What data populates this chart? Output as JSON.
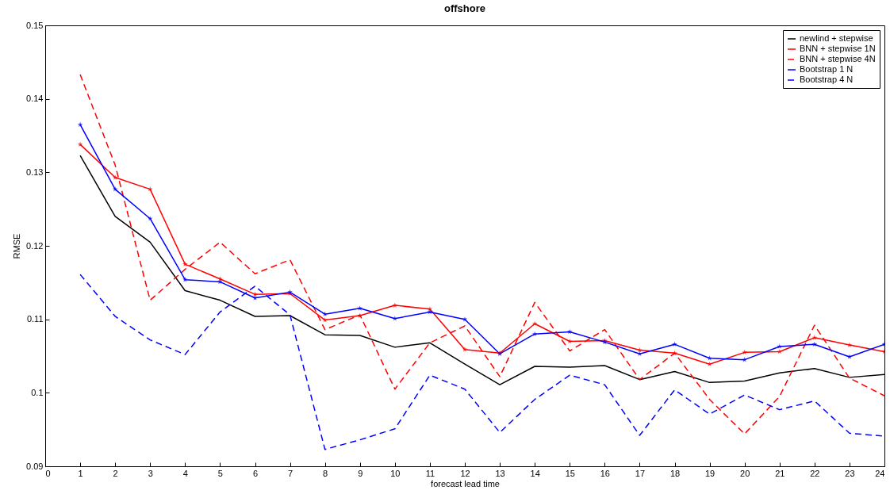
{
  "chart_data": {
    "type": "line",
    "title": "offshore",
    "xlabel": "forecast lead time",
    "ylabel": "RMSE",
    "x": [
      1,
      2,
      3,
      4,
      5,
      6,
      7,
      8,
      9,
      10,
      11,
      12,
      13,
      14,
      15,
      16,
      17,
      18,
      19,
      20,
      21,
      22,
      23,
      24
    ],
    "xlim": [
      0,
      24
    ],
    "xticks": [
      0,
      1,
      2,
      3,
      4,
      5,
      6,
      7,
      8,
      9,
      10,
      11,
      12,
      13,
      14,
      15,
      16,
      17,
      18,
      19,
      20,
      21,
      22,
      23,
      24
    ],
    "ylim": [
      0.09,
      0.15
    ],
    "yticks": [
      0.09,
      0.1,
      0.11,
      0.12,
      0.13,
      0.14,
      0.15
    ],
    "grid": false,
    "legend": "top right",
    "series": [
      {
        "name": "newlind + stepwise",
        "color": "#000000",
        "line_style": "solid",
        "marker": "none",
        "values": [
          0.1323,
          0.124,
          0.1205,
          0.1139,
          0.1126,
          0.1104,
          0.1105,
          0.1079,
          0.1078,
          0.1062,
          0.1068,
          0.1039,
          0.1011,
          0.1036,
          0.1035,
          0.1037,
          0.1018,
          0.1029,
          0.1014,
          0.1016,
          0.1027,
          0.1033,
          0.1021,
          0.1025
        ]
      },
      {
        "name": "BNN + stepwise 1N",
        "color": "#ff0000",
        "line_style": "solid",
        "marker": "star",
        "values": [
          0.1338,
          0.1293,
          0.1277,
          0.1175,
          0.1155,
          0.1134,
          0.1135,
          0.1099,
          0.1105,
          0.1119,
          0.1114,
          0.1059,
          0.1054,
          0.1094,
          0.107,
          0.1071,
          0.1058,
          0.1054,
          0.1039,
          0.1055,
          0.1056,
          0.1075,
          0.1065,
          0.1056
        ]
      },
      {
        "name": "BNN + stepwise 4N",
        "color": "#ff0000",
        "line_style": "dashed",
        "marker": "none",
        "values": [
          0.1433,
          0.131,
          0.1126,
          0.1168,
          0.1205,
          0.1162,
          0.1181,
          0.1086,
          0.1106,
          0.1005,
          0.1068,
          0.1091,
          0.1022,
          0.1123,
          0.1057,
          0.1086,
          0.1018,
          0.1054,
          0.0991,
          0.0944,
          0.0995,
          0.1092,
          0.102,
          0.0996
        ]
      },
      {
        "name": "Bootstrap 1 N",
        "color": "#0000ff",
        "line_style": "solid",
        "marker": "star",
        "values": [
          0.1365,
          0.1277,
          0.1237,
          0.1154,
          0.1151,
          0.1129,
          0.1137,
          0.1107,
          0.1115,
          0.1101,
          0.111,
          0.11,
          0.1053,
          0.108,
          0.1083,
          0.1069,
          0.1053,
          0.1066,
          0.1047,
          0.1045,
          0.1063,
          0.1066,
          0.1049,
          0.1066
        ]
      },
      {
        "name": "Bootstrap 4 N",
        "color": "#0000ff",
        "line_style": "dashed",
        "marker": "none",
        "values": [
          0.1161,
          0.1104,
          0.1072,
          0.1052,
          0.111,
          0.1145,
          0.1106,
          0.0923,
          0.0936,
          0.0951,
          0.1024,
          0.1005,
          0.0946,
          0.0991,
          0.1024,
          0.1011,
          0.0942,
          0.1004,
          0.0971,
          0.0997,
          0.0977,
          0.0989,
          0.0945,
          0.0941
        ]
      }
    ]
  }
}
